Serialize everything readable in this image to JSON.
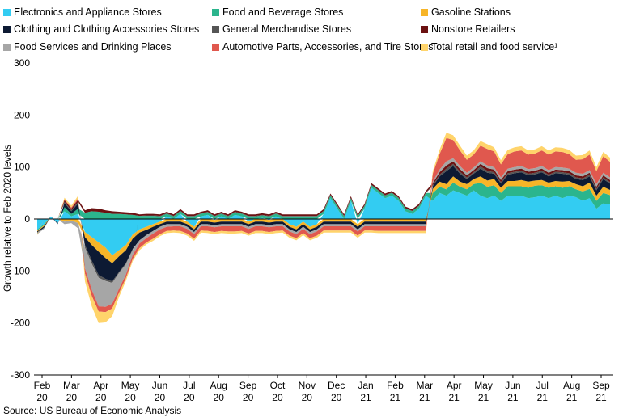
{
  "chart_data": {
    "type": "area",
    "title": "",
    "ylabel": "Growth relative to Feb 2020 levels",
    "xlabel": "",
    "ylim": [
      -300,
      300
    ],
    "yticks": [
      -300,
      -200,
      -100,
      0,
      100,
      200,
      300
    ],
    "x_tick_labels": [
      {
        "month": "Feb",
        "year": "20"
      },
      {
        "month": "Mar",
        "year": "20"
      },
      {
        "month": "Apr",
        "year": "20"
      },
      {
        "month": "May",
        "year": "20"
      },
      {
        "month": "Jun",
        "year": "20"
      },
      {
        "month": "Jul",
        "year": "20"
      },
      {
        "month": "Aug",
        "year": "20"
      },
      {
        "month": "Sep",
        "year": "20"
      },
      {
        "month": "Oct",
        "year": "20"
      },
      {
        "month": "Nov",
        "year": "20"
      },
      {
        "month": "Dec",
        "year": "20"
      },
      {
        "month": "Jan",
        "year": "21"
      },
      {
        "month": "Feb",
        "year": "21"
      },
      {
        "month": "Mar",
        "year": "21"
      },
      {
        "month": "Apr",
        "year": "21"
      },
      {
        "month": "May",
        "year": "21"
      },
      {
        "month": "Jun",
        "year": "21"
      },
      {
        "month": "Jul",
        "year": "21"
      },
      {
        "month": "Aug",
        "year": "21"
      },
      {
        "month": "Sep",
        "year": "21"
      }
    ],
    "x_range": [
      0,
      84
    ],
    "series": [
      {
        "name": "Electronics and Appliance Stores",
        "color": "#33ccf2",
        "values": [
          -20,
          -10,
          5,
          -8,
          15,
          5,
          10,
          -25,
          -35,
          -45,
          -55,
          -70,
          -60,
          -50,
          -30,
          -20,
          -15,
          -10,
          -5,
          5,
          0,
          10,
          -5,
          -15,
          5,
          8,
          -2,
          5,
          0,
          8,
          5,
          -5,
          0,
          2,
          -2,
          5,
          0,
          -10,
          -15,
          -5,
          -15,
          -10,
          10,
          40,
          20,
          0,
          35,
          -10,
          20,
          60,
          50,
          40,
          45,
          35,
          15,
          10,
          20,
          45,
          35,
          50,
          45,
          55,
          50,
          45,
          55,
          45,
          40,
          45,
          35,
          45,
          45,
          45,
          40,
          42,
          45,
          40,
          45,
          40,
          45,
          42,
          35,
          40,
          20,
          30,
          28
        ]
      },
      {
        "name": "Food and Beverage Stores",
        "color": "#2bb58d",
        "values": [
          -2,
          -2,
          0,
          0,
          8,
          5,
          10,
          12,
          15,
          14,
          12,
          10,
          10,
          9,
          8,
          6,
          6,
          6,
          5,
          5,
          5,
          5,
          5,
          5,
          5,
          5,
          5,
          5,
          5,
          5,
          5,
          5,
          5,
          5,
          5,
          5,
          5,
          5,
          5,
          5,
          5,
          5,
          5,
          5,
          5,
          5,
          5,
          5,
          5,
          5,
          5,
          5,
          5,
          5,
          5,
          5,
          5,
          5,
          15,
          12,
          12,
          15,
          12,
          12,
          12,
          25,
          22,
          20,
          15,
          18,
          18,
          18,
          20,
          22,
          20,
          20,
          18,
          20,
          18,
          15,
          18,
          18,
          15,
          20,
          18
        ]
      },
      {
        "name": "Gasoline Stations",
        "color": "#f7b528",
        "values": [
          -2,
          -2,
          0,
          0,
          -5,
          -3,
          -8,
          -10,
          -15,
          -18,
          -20,
          -15,
          -12,
          -10,
          -8,
          -6,
          -6,
          -5,
          -5,
          -5,
          -5,
          -5,
          -5,
          -5,
          -5,
          -5,
          -5,
          -5,
          -5,
          -5,
          -5,
          -5,
          -5,
          -5,
          -5,
          -5,
          -5,
          -5,
          -5,
          -5,
          -5,
          -5,
          -5,
          -5,
          -5,
          -5,
          -5,
          -5,
          -5,
          -5,
          -5,
          -5,
          -5,
          -5,
          -5,
          -5,
          -5,
          -5,
          8,
          10,
          10,
          12,
          10,
          10,
          10,
          12,
          12,
          12,
          10,
          10,
          10,
          12,
          12,
          10,
          10,
          10,
          10,
          12,
          10,
          10,
          10,
          12,
          10,
          12,
          10
        ]
      },
      {
        "name": "Clothing and Clothing Accessories Stores",
        "color": "#0d1a33",
        "values": [
          -2,
          -3,
          0,
          -2,
          8,
          5,
          10,
          -15,
          -30,
          -45,
          -40,
          -35,
          -30,
          -25,
          -20,
          -15,
          -10,
          -8,
          -5,
          -5,
          -5,
          -5,
          -5,
          -5,
          -5,
          -5,
          -5,
          -5,
          -5,
          -5,
          -5,
          -5,
          -5,
          -5,
          -5,
          -5,
          -5,
          -5,
          -5,
          -5,
          -5,
          -5,
          -5,
          -5,
          -5,
          -5,
          -5,
          -5,
          -5,
          -5,
          -5,
          -5,
          -5,
          -5,
          -5,
          -5,
          -5,
          -5,
          5,
          10,
          25,
          20,
          15,
          10,
          10,
          15,
          15,
          10,
          8,
          12,
          15,
          15,
          12,
          12,
          15,
          12,
          15,
          15,
          12,
          10,
          12,
          12,
          10,
          15,
          12
        ]
      },
      {
        "name": "General Merchandise Stores",
        "color": "#555555",
        "values": [
          0,
          0,
          0,
          0,
          2,
          2,
          3,
          -5,
          -6,
          -5,
          -4,
          -3,
          -2,
          -2,
          -1,
          0,
          1,
          1,
          1,
          1,
          1,
          1,
          1,
          1,
          1,
          1,
          1,
          1,
          1,
          1,
          1,
          1,
          1,
          1,
          1,
          1,
          1,
          1,
          1,
          1,
          1,
          1,
          1,
          1,
          1,
          1,
          1,
          1,
          1,
          1,
          1,
          1,
          1,
          1,
          1,
          1,
          1,
          1,
          2,
          3,
          5,
          4,
          4,
          3,
          3,
          4,
          4,
          3,
          3,
          3,
          3,
          3,
          3,
          3,
          3,
          3,
          3,
          3,
          3,
          3,
          3,
          3,
          3,
          3,
          3
        ]
      },
      {
        "name": "Nonstore Retailers",
        "color": "#6b1111",
        "values": [
          0,
          0,
          0,
          0,
          3,
          3,
          4,
          5,
          6,
          6,
          5,
          5,
          4,
          4,
          4,
          3,
          3,
          3,
          3,
          3,
          3,
          3,
          3,
          3,
          3,
          3,
          3,
          3,
          3,
          3,
          3,
          3,
          3,
          3,
          3,
          3,
          3,
          3,
          3,
          3,
          3,
          3,
          3,
          3,
          3,
          3,
          3,
          3,
          3,
          3,
          3,
          3,
          3,
          3,
          3,
          3,
          3,
          3,
          4,
          5,
          6,
          5,
          5,
          4,
          4,
          5,
          5,
          5,
          4,
          4,
          4,
          4,
          4,
          4,
          4,
          4,
          4,
          4,
          4,
          4,
          4,
          4,
          4,
          4,
          4
        ]
      },
      {
        "name": "Food Services and Drinking Places",
        "color": "#a6a6a6",
        "values": [
          -3,
          -2,
          0,
          0,
          -5,
          -5,
          -10,
          -40,
          -50,
          -55,
          -50,
          -40,
          -30,
          -20,
          -10,
          -6,
          -6,
          -5,
          -5,
          -5,
          -4,
          -4,
          -4,
          -4,
          -4,
          -4,
          -4,
          -4,
          -4,
          -4,
          -4,
          -4,
          -4,
          -4,
          -4,
          -4,
          -4,
          -4,
          -4,
          -4,
          -4,
          -4,
          -4,
          -4,
          -4,
          -4,
          -4,
          -4,
          -4,
          -4,
          -4,
          -4,
          -4,
          -4,
          -4,
          -4,
          -4,
          -4,
          3,
          5,
          8,
          6,
          6,
          5,
          5,
          5,
          5,
          5,
          5,
          5,
          5,
          5,
          5,
          5,
          5,
          5,
          5,
          5,
          5,
          5,
          5,
          5,
          5,
          5,
          5
        ]
      },
      {
        "name": "Automotive Parts, Accessories, and Tire Stores",
        "color": "#e0584e",
        "values": [
          0,
          0,
          0,
          0,
          2,
          2,
          3,
          -10,
          -12,
          -10,
          -10,
          -9,
          -8,
          -7,
          -8,
          -9,
          -8,
          -10,
          -9,
          -8,
          -8,
          -9,
          -9,
          -9,
          -8,
          -9,
          -9,
          -9,
          -10,
          -10,
          -9,
          -9,
          -9,
          -9,
          -9,
          -9,
          -8,
          -8,
          -8,
          -8,
          -8,
          -8,
          -8,
          -8,
          -8,
          -8,
          -8,
          -8,
          -8,
          -8,
          -9,
          -9,
          -9,
          -9,
          -9,
          -9,
          -9,
          -9,
          15,
          30,
          45,
          35,
          30,
          25,
          25,
          30,
          32,
          30,
          25,
          28,
          30,
          30,
          28,
          28,
          30,
          30,
          30,
          30,
          28,
          25,
          28,
          30,
          25,
          32,
          30
        ]
      },
      {
        "name": "Total retail and food service¹",
        "color": "#ffd46b",
        "values": [
          -2,
          0,
          0,
          0,
          3,
          4,
          5,
          -15,
          -20,
          -22,
          -20,
          -15,
          -8,
          -5,
          -4,
          -4,
          -4,
          -4,
          -4,
          -4,
          -4,
          -4,
          -4,
          -4,
          -4,
          -4,
          -4,
          -4,
          -4,
          -4,
          -4,
          -4,
          -4,
          -4,
          -4,
          -4,
          -4,
          -4,
          -4,
          -4,
          -4,
          -4,
          -4,
          -4,
          -4,
          -4,
          -4,
          -4,
          -4,
          -4,
          -4,
          -4,
          -4,
          -4,
          -4,
          -4,
          -4,
          -4,
          5,
          8,
          10,
          9,
          9,
          8,
          8,
          9,
          9,
          8,
          8,
          8,
          8,
          8,
          8,
          8,
          8,
          8,
          8,
          8,
          8,
          8,
          8,
          8,
          8,
          8,
          8
        ]
      }
    ]
  },
  "legend_order": [
    "Electronics and Appliance Stores",
    "Food and Beverage Stores",
    "Gasoline Stations",
    "Clothing and Clothing Accessories Stores",
    "General Merchandise Stores",
    "Nonstore Retailers",
    "Food Services and Drinking Places",
    "Automotive Parts, Accessories, and Tire Stores",
    "Total retail and food service¹"
  ],
  "source": "Source: US Bureau of Economic Analysis"
}
